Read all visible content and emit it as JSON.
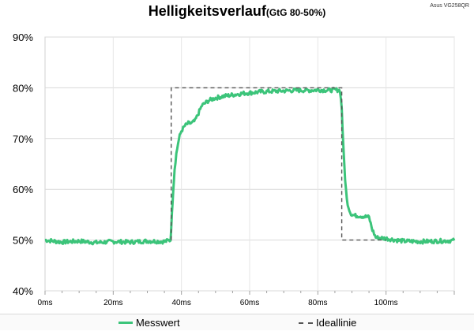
{
  "chart_data": {
    "type": "line",
    "title": "Helligkeitsverlauf",
    "subtitle": "(GtG 80-50%)",
    "model": "Asus VG258QR",
    "xlim": [
      0,
      120
    ],
    "ylim": [
      40,
      90
    ],
    "x_ticks": [
      {
        "value": 0,
        "label": "0ms"
      },
      {
        "value": 20,
        "label": "20ms"
      },
      {
        "value": 40,
        "label": "40ms"
      },
      {
        "value": 60,
        "label": "60ms"
      },
      {
        "value": 80,
        "label": "80ms"
      },
      {
        "value": 100,
        "label": "100ms"
      }
    ],
    "y_ticks": [
      {
        "value": 40,
        "label": "40%"
      },
      {
        "value": 50,
        "label": "50%"
      },
      {
        "value": 60,
        "label": "60%"
      },
      {
        "value": 70,
        "label": "70%"
      },
      {
        "value": 80,
        "label": "80%"
      },
      {
        "value": 90,
        "label": "90%"
      }
    ],
    "grid": true,
    "legend_position": "bottom",
    "series": [
      {
        "name": "Messwert",
        "color": "#3cc47a",
        "style": "solid",
        "x": [
          0,
          5,
          10,
          15,
          20,
          25,
          30,
          35,
          36.8,
          37.2,
          37.6,
          38,
          38.5,
          39,
          39.5,
          40,
          41,
          42,
          43,
          44,
          45,
          46,
          47,
          48,
          50,
          52,
          55,
          58,
          60,
          63,
          66,
          70,
          74,
          78,
          80,
          83,
          85,
          86.5,
          87,
          87.5,
          88,
          88.5,
          89,
          89.5,
          90,
          91,
          92,
          94,
          95,
          96,
          97,
          100,
          105,
          110,
          115,
          120
        ],
        "y": [
          50,
          49.6,
          49.8,
          49.5,
          49.7,
          49.6,
          49.8,
          49.7,
          50,
          55,
          60,
          64,
          67,
          69,
          70.5,
          71.5,
          72.5,
          73,
          73,
          73.5,
          75,
          76.5,
          77,
          77.5,
          78,
          78.3,
          78.6,
          78.9,
          79,
          79.2,
          79.3,
          79.4,
          79.5,
          79.5,
          79.6,
          79.5,
          79.6,
          79.5,
          76,
          68,
          62,
          58,
          56.5,
          55.5,
          55,
          54.8,
          54.8,
          54.6,
          54.5,
          52,
          50.5,
          50.3,
          49.8,
          49.7,
          49.8,
          49.9
        ]
      },
      {
        "name": "Ideallinie",
        "color": "#555555",
        "style": "dashed",
        "x": [
          37,
          37,
          87,
          87,
          100
        ],
        "y": [
          50,
          80,
          80,
          50,
          50
        ]
      }
    ]
  }
}
